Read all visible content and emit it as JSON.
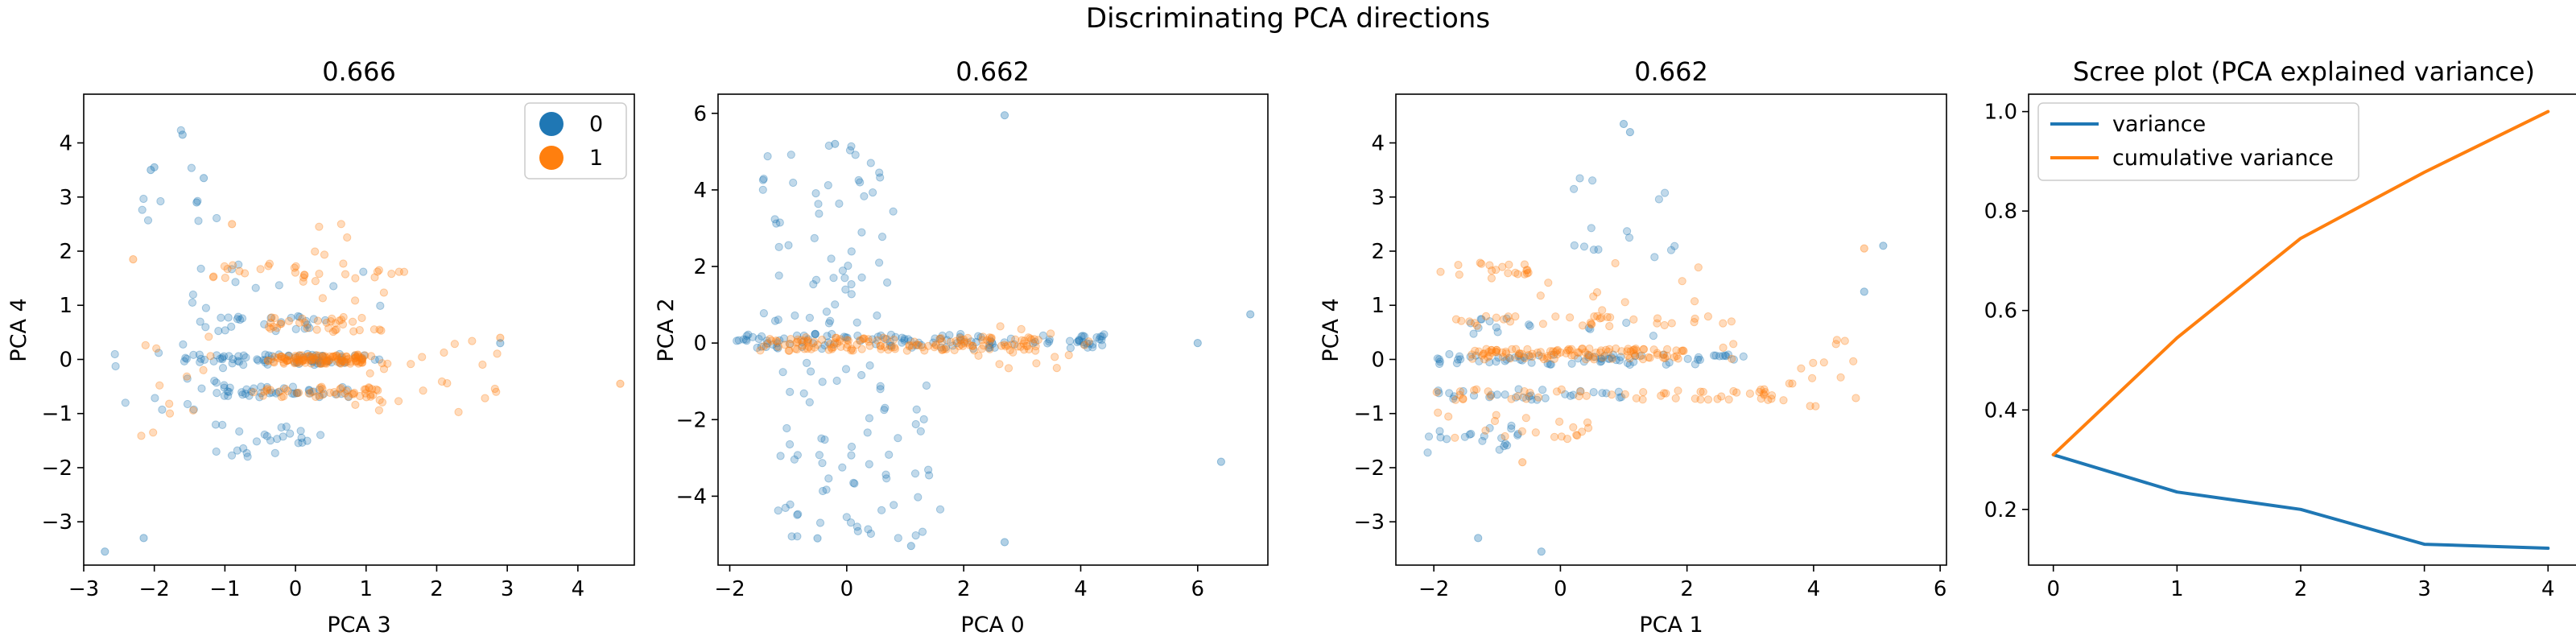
{
  "figure": {
    "suptitle": "Discriminating PCA directions"
  },
  "colors": {
    "class0": "#1f77b4",
    "class1": "#ff7f0e",
    "variance": "#1f77b4",
    "cumulative": "#ff7f0e"
  },
  "chart_data": [
    {
      "type": "scatter",
      "title": "0.666",
      "xlabel": "PCA 3",
      "ylabel": "PCA 4",
      "xlim": [
        -3.0,
        4.8
      ],
      "ylim": [
        -3.8,
        4.9
      ],
      "xticks": [
        -3,
        -2,
        -1,
        0,
        1,
        2,
        3,
        4
      ],
      "yticks": [
        -3,
        -2,
        -1,
        0,
        1,
        2,
        3,
        4
      ],
      "legend": {
        "placement": "top-right",
        "entries": [
          "0",
          "1"
        ]
      },
      "clusters": [
        {
          "cls": 0,
          "x": [
            -1.6,
            1.2
          ],
          "y": [
            -0.1,
            0.1
          ],
          "n": 70
        },
        {
          "cls": 1,
          "x": [
            -0.4,
            1.0
          ],
          "y": [
            -0.08,
            0.08
          ],
          "n": 110
        },
        {
          "cls": 0,
          "x": [
            -1.2,
            0.8
          ],
          "y": [
            -0.7,
            -0.5
          ],
          "n": 40
        },
        {
          "cls": 1,
          "x": [
            -0.6,
            1.2
          ],
          "y": [
            -0.7,
            -0.5
          ],
          "n": 45
        },
        {
          "cls": 0,
          "x": [
            -1.4,
            0.6
          ],
          "y": [
            0.5,
            0.8
          ],
          "n": 25
        },
        {
          "cls": 1,
          "x": [
            -0.4,
            1.4
          ],
          "y": [
            0.5,
            0.8
          ],
          "n": 35
        },
        {
          "cls": 1,
          "x": [
            -1.2,
            1.6
          ],
          "y": [
            1.5,
            1.8
          ],
          "n": 25
        },
        {
          "cls": 0,
          "x": [
            -1.2,
            0.4
          ],
          "y": [
            -1.8,
            -1.2
          ],
          "n": 25
        },
        {
          "cls": 1,
          "x": [
            0.8,
            3.0
          ],
          "y": [
            -1.0,
            0.4
          ],
          "n": 25
        },
        {
          "cls": 0,
          "x": [
            -2.6,
            -1.0
          ],
          "y": [
            -1.0,
            0.3
          ],
          "n": 18
        },
        {
          "cls": 1,
          "x": [
            -2.2,
            -1.2
          ],
          "y": [
            -1.5,
            0.5
          ],
          "n": 12
        },
        {
          "cls": 0,
          "x": [
            -2.3,
            -0.9
          ],
          "y": [
            2.4,
            4.4
          ],
          "n": 9
        },
        {
          "cls": 1,
          "x": [
            -1.2,
            1.4
          ],
          "y": [
            1.0,
            2.6
          ],
          "n": 12
        },
        {
          "cls": 0,
          "x": [
            -1.5,
            1.5
          ],
          "y": [
            0.9,
            2.0
          ],
          "n": 12
        }
      ],
      "points": [
        {
          "x": -2.7,
          "y": -3.55,
          "cls": 0
        },
        {
          "x": -2.15,
          "y": -3.3,
          "cls": 0
        },
        {
          "x": 4.6,
          "y": -0.45,
          "cls": 1
        },
        {
          "x": 2.9,
          "y": 0.4,
          "cls": 1
        },
        {
          "x": 2.9,
          "y": 0.3,
          "cls": 0
        },
        {
          "x": -2.3,
          "y": 1.85,
          "cls": 1
        },
        {
          "x": -2.0,
          "y": 3.55,
          "cls": 0
        },
        {
          "x": -2.05,
          "y": 3.5,
          "cls": 0
        },
        {
          "x": -1.6,
          "y": 4.15,
          "cls": 0
        },
        {
          "x": -1.3,
          "y": 3.35,
          "cls": 0
        },
        {
          "x": -0.9,
          "y": 2.5,
          "cls": 1
        },
        {
          "x": -1.4,
          "y": 2.9,
          "cls": 0
        }
      ]
    },
    {
      "type": "scatter",
      "title": "0.662",
      "xlabel": "PCA 0",
      "ylabel": "PCA 2",
      "xlim": [
        -2.2,
        7.2
      ],
      "ylim": [
        -5.8,
        6.5
      ],
      "xticks": [
        -2,
        0,
        2,
        4,
        6
      ],
      "yticks": [
        -4,
        -2,
        0,
        2,
        4,
        6
      ],
      "clusters": [
        {
          "cls": 0,
          "x": [
            -1.9,
            4.6
          ],
          "y": [
            -0.15,
            0.25
          ],
          "n": 120
        },
        {
          "cls": 1,
          "x": [
            -1.5,
            3.3
          ],
          "y": [
            -0.2,
            0.15
          ],
          "n": 140
        },
        {
          "cls": 0,
          "x": [
            -1.5,
            0.4
          ],
          "y": [
            0.5,
            5.3
          ],
          "n": 45
        },
        {
          "cls": 0,
          "x": [
            -1.2,
            0.7
          ],
          "y": [
            -5.2,
            -0.5
          ],
          "n": 50
        },
        {
          "cls": 0,
          "x": [
            0.2,
            1.6
          ],
          "y": [
            -5.1,
            -0.6
          ],
          "n": 18
        },
        {
          "cls": 0,
          "x": [
            -0.3,
            0.8
          ],
          "y": [
            0.6,
            5.6
          ],
          "n": 12
        },
        {
          "cls": 1,
          "x": [
            2.0,
            4.2
          ],
          "y": [
            -0.7,
            0.5
          ],
          "n": 15
        }
      ],
      "points": [
        {
          "x": 6.0,
          "y": 0.0,
          "cls": 0
        },
        {
          "x": 6.9,
          "y": 0.75,
          "cls": 0
        },
        {
          "x": 6.4,
          "y": -3.1,
          "cls": 0
        },
        {
          "x": 2.7,
          "y": 5.95,
          "cls": 0
        },
        {
          "x": 2.7,
          "y": -5.2,
          "cls": 0
        },
        {
          "x": 1.1,
          "y": -5.3,
          "cls": 0
        },
        {
          "x": -0.2,
          "y": 5.2,
          "cls": 0
        },
        {
          "x": -0.5,
          "y": -5.1,
          "cls": 0
        }
      ]
    },
    {
      "type": "scatter",
      "title": "0.662",
      "xlabel": "PCA 1",
      "ylabel": "PCA 4",
      "xlim": [
        -2.6,
        6.1
      ],
      "ylim": [
        -3.8,
        4.9
      ],
      "xticks": [
        -2,
        0,
        2,
        4,
        6
      ],
      "yticks": [
        -3,
        -2,
        -1,
        0,
        1,
        2,
        3,
        4
      ],
      "clusters": [
        {
          "cls": 1,
          "x": [
            -1.4,
            2.0
          ],
          "y": [
            0.0,
            0.2
          ],
          "n": 110
        },
        {
          "cls": 0,
          "x": [
            -2.0,
            3.0
          ],
          "y": [
            -0.1,
            0.1
          ],
          "n": 70
        },
        {
          "cls": 1,
          "x": [
            -2.0,
            3.4
          ],
          "y": [
            -0.75,
            -0.55
          ],
          "n": 50
        },
        {
          "cls": 0,
          "x": [
            -2.0,
            1.0
          ],
          "y": [
            -0.75,
            -0.55
          ],
          "n": 30
        },
        {
          "cls": 1,
          "x": [
            -2.0,
            3.0
          ],
          "y": [
            0.6,
            0.8
          ],
          "n": 35
        },
        {
          "cls": 0,
          "x": [
            -1.5,
            1.5
          ],
          "y": [
            0.4,
            0.8
          ],
          "n": 15
        },
        {
          "cls": 1,
          "x": [
            -2.0,
            -0.5
          ],
          "y": [
            1.5,
            1.8
          ],
          "n": 20
        },
        {
          "cls": 1,
          "x": [
            -2.0,
            0.5
          ],
          "y": [
            -1.5,
            -0.9
          ],
          "n": 20
        },
        {
          "cls": 0,
          "x": [
            -2.1,
            -0.5
          ],
          "y": [
            -1.8,
            -1.2
          ],
          "n": 20
        },
        {
          "cls": 1,
          "x": [
            2.5,
            4.8
          ],
          "y": [
            -1.0,
            0.5
          ],
          "n": 20
        },
        {
          "cls": 0,
          "x": [
            0.0,
            2.0
          ],
          "y": [
            1.8,
            4.3
          ],
          "n": 15
        },
        {
          "cls": 1,
          "x": [
            -0.5,
            2.5
          ],
          "y": [
            0.8,
            1.8
          ],
          "n": 10
        }
      ],
      "points": [
        {
          "x": -0.3,
          "y": -3.55,
          "cls": 0
        },
        {
          "x": -1.3,
          "y": -3.3,
          "cls": 0
        },
        {
          "x": 5.1,
          "y": 2.1,
          "cls": 0
        },
        {
          "x": 4.8,
          "y": 2.05,
          "cls": 1
        },
        {
          "x": 4.8,
          "y": 1.25,
          "cls": 0
        },
        {
          "x": -0.6,
          "y": -1.9,
          "cls": 1
        },
        {
          "x": 1.0,
          "y": 4.35,
          "cls": 0
        },
        {
          "x": 1.1,
          "y": 4.2,
          "cls": 0
        }
      ]
    },
    {
      "type": "line",
      "title": "Scree plot (PCA explained variance)",
      "xlim": [
        -0.2,
        4.2
      ],
      "ylim": [
        0.088,
        1.035
      ],
      "xticks": [
        0,
        1,
        2,
        3,
        4
      ],
      "yticks": [
        0.2,
        0.4,
        0.6,
        0.8,
        1.0
      ],
      "ytick_labels": [
        "0.2",
        "0.4",
        "0.6",
        "0.8",
        "1.0"
      ],
      "legend": {
        "placement": "top-left",
        "entries": [
          "variance",
          "cumulative variance"
        ]
      },
      "x": [
        0,
        1,
        2,
        3,
        4
      ],
      "series": [
        {
          "name": "variance",
          "values": [
            0.31,
            0.235,
            0.2,
            0.13,
            0.122
          ]
        },
        {
          "name": "cumulative variance",
          "values": [
            0.31,
            0.545,
            0.745,
            0.878,
            1.0
          ]
        }
      ]
    }
  ]
}
